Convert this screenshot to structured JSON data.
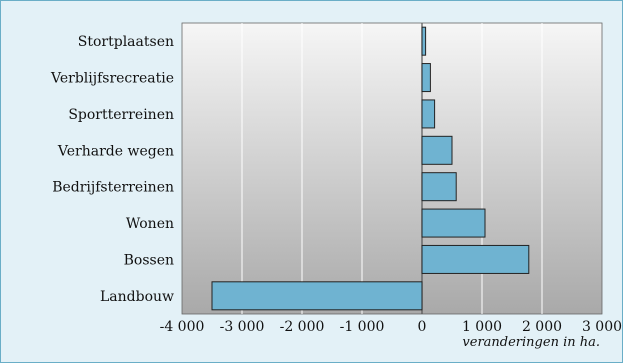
{
  "colors": {
    "background": "#e3f1f7",
    "border": "#6aaec7",
    "bar_fill": "#6fb3d1",
    "bar_stroke": "#222222",
    "plot_gradient_top": "#f6f6f6",
    "plot_gradient_bottom": "#a9a9a9",
    "gridline": "#ffffff"
  },
  "chart_data": {
    "type": "bar",
    "orientation": "horizontal",
    "categories": [
      "Stortplaatsen",
      "Verblijfsrecreatie",
      "Sportterreinen",
      "Verharde wegen",
      "Bedrijfsterreinen",
      "Wonen",
      "Bossen",
      "Landbouw"
    ],
    "values": [
      60,
      140,
      210,
      500,
      570,
      1050,
      1780,
      -3500
    ],
    "xlabel": "veranderingen in ha.",
    "xlim": [
      -4000,
      3000
    ],
    "xticks": [
      -4000,
      -3000,
      -2000,
      -1000,
      0,
      1000,
      2000,
      3000
    ],
    "xtick_labels": [
      "-4 000",
      "-3 000",
      "-2 000",
      "-1 000",
      "0",
      "1 000",
      "2 000",
      "3 000"
    ],
    "grid": true,
    "legend": "none"
  }
}
